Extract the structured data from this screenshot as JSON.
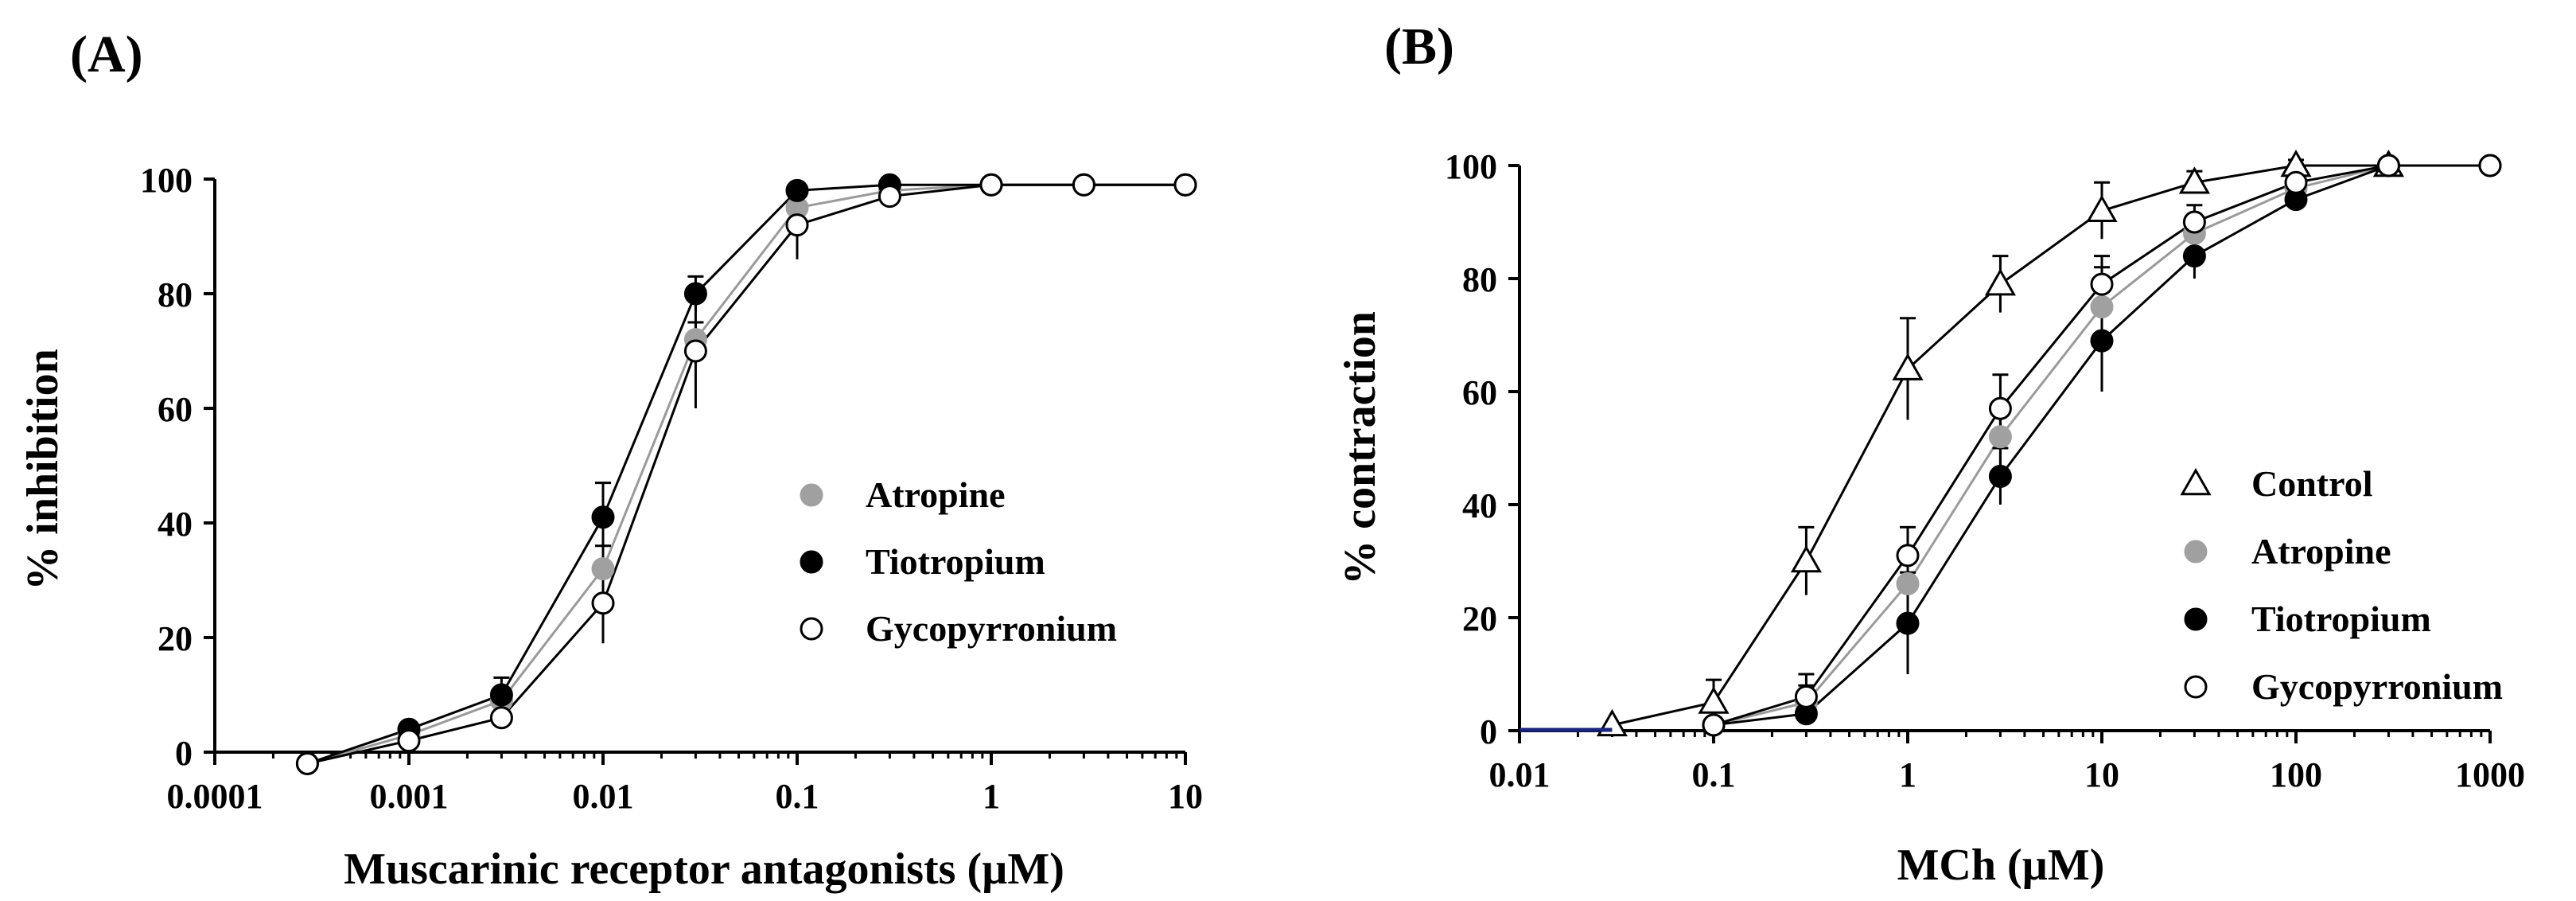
{
  "colors": {
    "atropine": "#a0a0a0",
    "tiotropium": "#000000",
    "glycopyrronium": "#ffffff",
    "control": "#ffffff",
    "axis": "#000000"
  },
  "chart_data": [
    {
      "panel": "(A)",
      "type": "line",
      "xscale": "log",
      "xlabel": "Muscarinic receptor antagonists (µM)",
      "ylabel": "% inhibition",
      "xlim": [
        0.0001,
        10
      ],
      "ylim": [
        0,
        100
      ],
      "xticks": [
        0.0001,
        0.001,
        0.01,
        0.1,
        1,
        10
      ],
      "xtick_labels": [
        "0.0001",
        "0.001",
        "0.01",
        "0.1",
        "1",
        "10"
      ],
      "yticks": [
        0,
        20,
        40,
        60,
        80,
        100
      ],
      "ytick_labels": [
        "0",
        "20",
        "40",
        "60",
        "80",
        "100"
      ],
      "legend_position": "center-right",
      "series": [
        {
          "name": "Atropine",
          "marker": "filled-circle",
          "color": "#a0a0a0",
          "x": [
            0.0003,
            0.001,
            0.003,
            0.01,
            0.03,
            0.1,
            0.3,
            1,
            3,
            10
          ],
          "y": [
            -2,
            3,
            9,
            32,
            72,
            95,
            98,
            99,
            99,
            99
          ],
          "err": [
            0,
            1,
            2,
            4,
            3,
            2,
            1,
            0,
            0,
            0
          ]
        },
        {
          "name": "Tiotropium",
          "marker": "filled-circle",
          "color": "#000000",
          "x": [
            0.0003,
            0.001,
            0.003,
            0.01,
            0.03,
            0.1,
            0.3,
            1,
            3,
            10
          ],
          "y": [
            -2,
            4,
            10,
            41,
            80,
            98,
            99,
            99,
            99,
            99
          ],
          "err": [
            0,
            1,
            3,
            6,
            3,
            1,
            1,
            0,
            0,
            0
          ]
        },
        {
          "name": "Gycopyrronium",
          "marker": "open-circle",
          "color": "#ffffff",
          "x": [
            0.0003,
            0.001,
            0.003,
            0.01,
            0.03,
            0.1,
            0.3,
            1,
            3,
            10
          ],
          "y": [
            -2,
            2,
            6,
            26,
            70,
            92,
            97,
            99,
            99,
            99
          ],
          "err": [
            0,
            1,
            1,
            7,
            10,
            6,
            2,
            0,
            0,
            0
          ]
        }
      ]
    },
    {
      "panel": "(B)",
      "type": "line",
      "xscale": "log",
      "xlabel": "MCh  (µM)",
      "ylabel": "% contraction",
      "xlim": [
        0.01,
        1000
      ],
      "ylim": [
        0,
        100
      ],
      "xticks": [
        0.01,
        0.1,
        1,
        10,
        100,
        1000
      ],
      "xtick_labels": [
        "0.01",
        "0.1",
        "1",
        "10",
        "100",
        "1000"
      ],
      "yticks": [
        0,
        20,
        40,
        60,
        80,
        100
      ],
      "ytick_labels": [
        "0",
        "20",
        "40",
        "60",
        "80",
        "100"
      ],
      "legend_position": "bottom-right",
      "series": [
        {
          "name": "Control",
          "marker": "open-triangle",
          "color": "#ffffff",
          "x": [
            0.03,
            0.1,
            0.3,
            1,
            3,
            10,
            30,
            100,
            300
          ],
          "y": [
            1,
            5,
            30,
            64,
            79,
            92,
            97,
            100,
            100
          ],
          "err": [
            0,
            4,
            6,
            9,
            5,
            5,
            2,
            1,
            0
          ]
        },
        {
          "name": "Atropine",
          "marker": "filled-circle",
          "color": "#a0a0a0",
          "x": [
            0.1,
            0.3,
            1,
            3,
            10,
            30,
            100,
            300,
            1000
          ],
          "y": [
            1,
            5,
            26,
            52,
            75,
            88,
            96,
            100,
            100
          ],
          "err": [
            0,
            3,
            6,
            6,
            7,
            3,
            2,
            0,
            0
          ]
        },
        {
          "name": "Tiotropium",
          "marker": "filled-circle",
          "color": "#000000",
          "x": [
            0.1,
            0.3,
            1,
            3,
            10,
            30,
            100,
            300,
            1000
          ],
          "y": [
            1,
            3,
            19,
            45,
            69,
            84,
            94,
            100,
            100
          ],
          "err": [
            0,
            2,
            9,
            5,
            9,
            4,
            2,
            0,
            0
          ]
        },
        {
          "name": "Gycopyrronium",
          "marker": "open-circle",
          "color": "#ffffff",
          "x": [
            0.1,
            0.3,
            1,
            3,
            10,
            30,
            100,
            300,
            1000
          ],
          "y": [
            1,
            6,
            31,
            57,
            79,
            90,
            97,
            100,
            100
          ],
          "err": [
            0,
            4,
            5,
            6,
            5,
            3,
            2,
            0,
            0
          ]
        }
      ]
    }
  ]
}
